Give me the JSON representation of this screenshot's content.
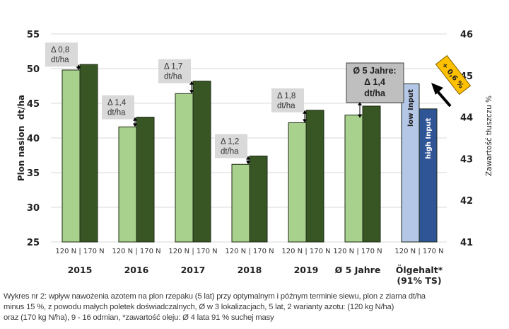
{
  "chart_data": {
    "type": "bar",
    "title": "",
    "xlabel": "",
    "ylabel": "Plon nasion  dt/ha",
    "ylabel_right": "Zawartość tłuszczu %",
    "ylim": [
      25,
      55
    ],
    "yticks": [
      25,
      30,
      35,
      40,
      45,
      50,
      55
    ],
    "ylim_right": [
      41,
      46
    ],
    "yticks_right": [
      41,
      42,
      43,
      44,
      45,
      46
    ],
    "grid": true,
    "bar_sublabel": "120 N | 170 N",
    "categories": [
      "2015",
      "2016",
      "2017",
      "2018",
      "2019",
      "Ø 5 Jahre",
      "Ölgehalt*"
    ],
    "category_lines2": [
      "",
      "",
      "",
      "",
      "",
      "",
      "(91% TS)"
    ],
    "series": [
      {
        "name": "120 N",
        "axis": "left",
        "color": "#a9d18e",
        "values": [
          49.8,
          41.6,
          46.4,
          36.2,
          42.2,
          43.3,
          null
        ]
      },
      {
        "name": "170 N",
        "axis": "left",
        "color": "#375623",
        "values": [
          50.6,
          43.0,
          48.2,
          37.4,
          44.0,
          44.6,
          null
        ]
      },
      {
        "name": "low Input (120 N)",
        "axis": "right",
        "color": "#b4c7e7",
        "values": [
          null,
          null,
          null,
          null,
          null,
          null,
          44.8
        ]
      },
      {
        "name": "high Input (170 N)",
        "axis": "right",
        "color": "#2f5597",
        "values": [
          null,
          null,
          null,
          null,
          null,
          null,
          44.2
        ]
      }
    ],
    "annotations": {
      "deltas": [
        {
          "category": "2015",
          "line1": "Δ 0,8",
          "line2": "dt/ha"
        },
        {
          "category": "2016",
          "line1": "Δ 1,4",
          "line2": "dt/ha"
        },
        {
          "category": "2017",
          "line1": "Δ 1,7",
          "line2": "dt/ha"
        },
        {
          "category": "2018",
          "line1": "Δ 1,2",
          "line2": "dt/ha"
        },
        {
          "category": "2019",
          "line1": "Δ 1,8",
          "line2": "dt/ha"
        }
      ],
      "average_box": {
        "line1": "Ø 5 Jahre:",
        "line2": "Δ 1,4",
        "line3": "dt/ha"
      },
      "oil_bar_labels": {
        "low": "low Input",
        "high": "high Input"
      },
      "oil_badge": "+ 0,6 %"
    }
  },
  "caption": {
    "line1": "Wykres nr 2: wpływ  nawożenia  azotem na plon rzepaku (5 lat) przy optymalnym  i późnym terminie siewu, plon z ziarna dt/ha",
    "line2": "minus 15 %, z powodu małych poletek doświadczalnych,  Ø w 3 lokalizacjach,  5 lat, 2 warianty azotu: (120 kg N/ha)",
    "line3": "oraz (170 kg N/ha), 9 - 16 odmian,  *zawartość oleju:  Ø 4 lata 91 % suchej masy"
  }
}
